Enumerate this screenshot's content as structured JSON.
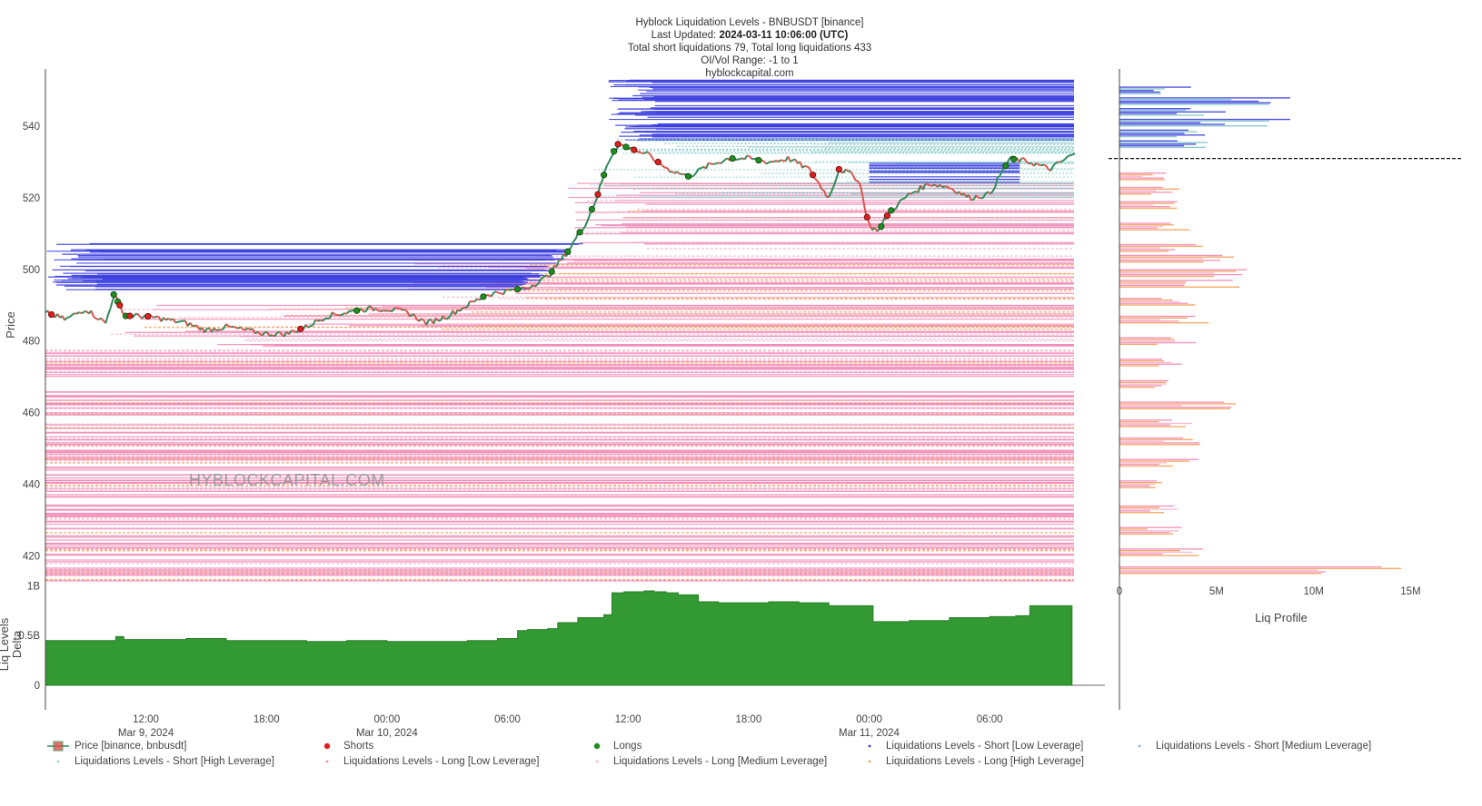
{
  "header": {
    "title": "Hyblock Liquidation Levels - BNBUSDT [binance]",
    "updated_label": "Last Updated:",
    "updated_value": "2024-03-11 10:06:00 (UTC)",
    "totals": "Total short liquidations 79, Total long liquidations 433",
    "range": "OI/Vol Range: -1 to 1",
    "site": "hyblockcapital.com"
  },
  "watermark": "HYBLOCKCAPITAL.COM",
  "colors": {
    "short_low": "#3b3fe0",
    "short_medium": "#7fc6c6",
    "short_high": "#9fd8d8",
    "long_low": "#f28cb8",
    "long_medium": "#f7b6d0",
    "long_high": "#f5a25a",
    "price_up": "#2e8b57",
    "price_down": "#e0524a",
    "delta_fill": "#339933",
    "shorts_marker": "#e02020",
    "longs_marker": "#1e8f1e"
  },
  "chart_data": [
    {
      "type": "line",
      "name": "price-and-liquidation-levels",
      "ylabel": "Price",
      "yticks": [
        "540",
        "520",
        "500",
        "480",
        "460",
        "440",
        "420"
      ],
      "ytick_values": [
        540,
        520,
        500,
        480,
        460,
        440,
        420
      ],
      "ylim": [
        413,
        556
      ],
      "xticks": [
        {
          "time": "12:00",
          "date": "Mar 9, 2024",
          "h": 12
        },
        {
          "time": "18:00",
          "date": "",
          "h": 18
        },
        {
          "time": "00:00",
          "date": "Mar 10, 2024",
          "h": 24
        },
        {
          "time": "06:00",
          "date": "",
          "h": 30
        },
        {
          "time": "12:00",
          "date": "",
          "h": 36
        },
        {
          "time": "18:00",
          "date": "",
          "h": 42
        },
        {
          "time": "00:00",
          "date": "Mar 11, 2024",
          "h": 48
        },
        {
          "time": "06:00",
          "date": "",
          "h": 54
        }
      ],
      "xlim_hours": [
        7,
        58.2
      ],
      "price_series": {
        "name": "Price [binance, bnbusdt]",
        "x_hours": [
          7.0,
          8.0,
          9.0,
          10.0,
          10.4,
          11.0,
          12.0,
          13.0,
          14.0,
          15.0,
          16.0,
          17.0,
          18.0,
          19.0,
          20.0,
          21.0,
          22.0,
          23.0,
          24.0,
          25.0,
          26.0,
          27.0,
          28.0,
          29.0,
          30.0,
          31.0,
          32.0,
          33.0,
          34.0,
          34.5,
          35.0,
          35.5,
          36.0,
          37.0,
          38.0,
          39.0,
          40.0,
          41.0,
          42.0,
          43.0,
          44.0,
          45.0,
          46.0,
          46.5,
          47.0,
          47.5,
          48.0,
          48.5,
          49.0,
          50.0,
          51.0,
          52.0,
          53.0,
          54.0,
          55.0,
          56.0,
          57.0,
          58.1
        ],
        "values": [
          488,
          486,
          489,
          485,
          493,
          487,
          487,
          486,
          485,
          483,
          484,
          483,
          482,
          482,
          484,
          487,
          488,
          489,
          489,
          488,
          485,
          487,
          490,
          493,
          494,
          495,
          498,
          505,
          514,
          521,
          530,
          535,
          534,
          532,
          528,
          526,
          529,
          531,
          531,
          530,
          531,
          528,
          520,
          528,
          527,
          525,
          512,
          511,
          516,
          521,
          524,
          523,
          520,
          521,
          531,
          530,
          528,
          532
        ]
      },
      "short_levels": {
        "low": "536-553, 494-508",
        "medium": "528-537",
        "high": "520-530"
      },
      "long_levels": {
        "low": "413-525",
        "medium": "413-525",
        "high": "413-525"
      }
    },
    {
      "type": "area",
      "name": "liq-levels-delta",
      "ylabel": "Liq Levels Delta",
      "yticks": [
        "1B",
        "0.5B",
        "0"
      ],
      "ytick_values": [
        1,
        0.5,
        0
      ],
      "ylim": [
        0,
        1.05
      ],
      "x_hours": [
        7,
        9,
        10.5,
        10.9,
        11.5,
        14,
        16,
        20,
        22,
        24,
        28,
        29.5,
        30.5,
        31,
        32,
        32.5,
        33.5,
        34.8,
        35.2,
        35.8,
        36.8,
        37.3,
        37.9,
        38.5,
        39.5,
        40.5,
        43,
        44.5,
        46,
        47.5,
        48.2,
        50,
        52,
        54,
        55.3,
        56,
        58.1
      ],
      "values": [
        0.45,
        0.45,
        0.49,
        0.46,
        0.46,
        0.47,
        0.45,
        0.44,
        0.45,
        0.44,
        0.45,
        0.47,
        0.55,
        0.56,
        0.57,
        0.63,
        0.68,
        0.71,
        0.93,
        0.94,
        0.95,
        0.94,
        0.93,
        0.91,
        0.84,
        0.83,
        0.84,
        0.83,
        0.8,
        0.8,
        0.64,
        0.65,
        0.68,
        0.69,
        0.7,
        0.8,
        0.79
      ]
    },
    {
      "type": "bar",
      "name": "liq-profile",
      "xlabel": "Liq Profile",
      "xticks": [
        "0",
        "5M",
        "10M",
        "15M"
      ],
      "xtick_values": [
        0,
        5,
        10,
        15
      ],
      "xlim_millions": [
        0,
        17.6
      ],
      "current_price": 531,
      "profile": [
        {
          "price": 550,
          "value": 3.9
        },
        {
          "price": 547,
          "value": 8.8
        },
        {
          "price": 544,
          "value": 6.2
        },
        {
          "price": 541,
          "value": 8.8
        },
        {
          "price": 538,
          "value": 5.0
        },
        {
          "price": 535,
          "value": 5.2
        },
        {
          "price": 526,
          "value": 2.4
        },
        {
          "price": 522,
          "value": 3.5
        },
        {
          "price": 518,
          "value": 3.6
        },
        {
          "price": 512,
          "value": 4.0
        },
        {
          "price": 506,
          "value": 4.5
        },
        {
          "price": 503,
          "value": 6.7
        },
        {
          "price": 499,
          "value": 6.8
        },
        {
          "price": 496,
          "value": 6.8
        },
        {
          "price": 491,
          "value": 4.2
        },
        {
          "price": 486,
          "value": 4.6
        },
        {
          "price": 480,
          "value": 4.2
        },
        {
          "price": 474,
          "value": 3.3
        },
        {
          "price": 468,
          "value": 2.6
        },
        {
          "price": 462,
          "value": 6.2
        },
        {
          "price": 457,
          "value": 4.0
        },
        {
          "price": 452,
          "value": 4.3
        },
        {
          "price": 446,
          "value": 4.1
        },
        {
          "price": 440,
          "value": 3.2
        },
        {
          "price": 433,
          "value": 3.1
        },
        {
          "price": 427,
          "value": 3.2
        },
        {
          "price": 421,
          "value": 4.3
        },
        {
          "price": 416,
          "value": 16.7
        }
      ]
    }
  ],
  "legend": [
    {
      "label": "Price [binance, bnbusdt]",
      "type": "candle"
    },
    {
      "label": "Shorts",
      "type": "dot",
      "color": "#e02020"
    },
    {
      "label": "Longs",
      "type": "dot",
      "color": "#1e8f1e"
    },
    {
      "label": "Liquidations Levels - Short [Low Leverage]",
      "type": "smalldot",
      "color": "#3b3fe0"
    },
    {
      "label": "Liquidations Levels - Short [Medium Leverage]",
      "type": "smalldot",
      "color": "#7fc6c6"
    },
    {
      "label": "Liquidations Levels - Short [High Leverage]",
      "type": "smalldot",
      "color": "#9fd8d8"
    },
    {
      "label": "Liquidations Levels - Long [Low Leverage]",
      "type": "smalldot",
      "color": "#f28cb8"
    },
    {
      "label": "Liquidations Levels - Long [Medium Leverage]",
      "type": "smalldot",
      "color": "#f7b6d0"
    },
    {
      "label": "Liquidations Levels - Long [High Leverage]",
      "type": "smalldot",
      "color": "#f5a25a"
    }
  ]
}
